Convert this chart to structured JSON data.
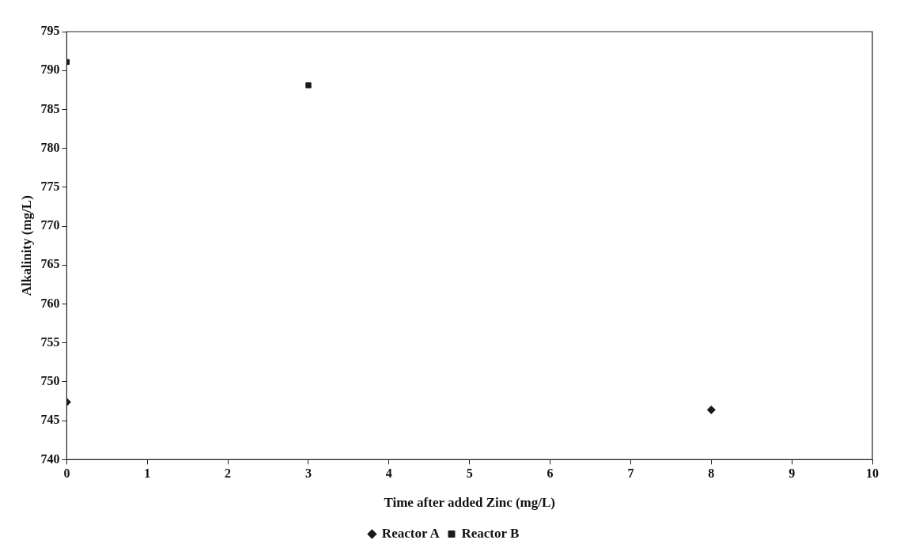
{
  "chart_data": {
    "type": "scatter",
    "xlabel": "Time after added Zinc (mg/L)",
    "ylabel": "Alkalinity (mg/L)",
    "xlim": [
      0,
      10
    ],
    "xticks": [
      0,
      1,
      2,
      3,
      4,
      5,
      6,
      7,
      8,
      9,
      10
    ],
    "ylim": [
      740,
      795
    ],
    "yticks": [
      740,
      745,
      750,
      755,
      760,
      765,
      770,
      775,
      780,
      785,
      790,
      795
    ],
    "grid": false,
    "legend": "bottom",
    "series": [
      {
        "name": "Reactor A",
        "color": "#1a1a1a",
        "marker": "diamond",
        "x": [
          0,
          8
        ],
        "values": [
          747.4,
          746.4
        ]
      },
      {
        "name": "Reactor B",
        "color": "#1a1a1a",
        "marker": "square",
        "x": [
          0,
          3
        ],
        "values": [
          791.1,
          788.1
        ]
      }
    ]
  }
}
